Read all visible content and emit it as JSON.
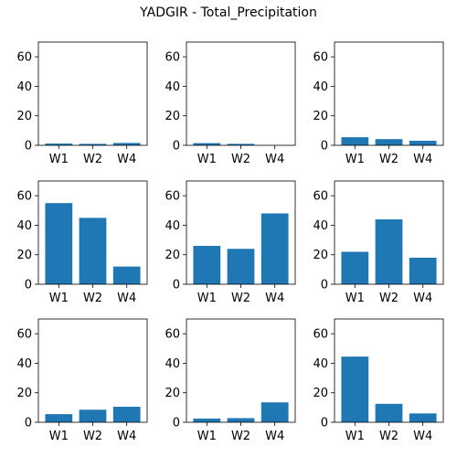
{
  "title": "YADGIR - Total_Precipitation",
  "colors": {
    "bar": "#1f77b4",
    "axis": "#000000"
  },
  "chart_data": [
    {
      "type": "bar",
      "categories": [
        "W1",
        "W2",
        "W4"
      ],
      "values": [
        1.2,
        1.0,
        1.6
      ],
      "ylim": [
        0,
        70
      ],
      "yticks": [
        0,
        20,
        40,
        60
      ],
      "grid": false
    },
    {
      "type": "bar",
      "categories": [
        "W1",
        "W2",
        "W4"
      ],
      "values": [
        1.5,
        1.0,
        0.0
      ],
      "ylim": [
        0,
        70
      ],
      "yticks": [
        0,
        20,
        40,
        60
      ],
      "grid": false
    },
    {
      "type": "bar",
      "categories": [
        "W1",
        "W2",
        "W4"
      ],
      "values": [
        5.5,
        4.2,
        3.1
      ],
      "ylim": [
        0,
        70
      ],
      "yticks": [
        0,
        20,
        40,
        60
      ],
      "grid": false
    },
    {
      "type": "bar",
      "categories": [
        "W1",
        "W2",
        "W4"
      ],
      "values": [
        55,
        45,
        12
      ],
      "ylim": [
        0,
        70
      ],
      "yticks": [
        0,
        20,
        40,
        60
      ],
      "grid": false
    },
    {
      "type": "bar",
      "categories": [
        "W1",
        "W2",
        "W4"
      ],
      "values": [
        26,
        24,
        48
      ],
      "ylim": [
        0,
        70
      ],
      "yticks": [
        0,
        20,
        40,
        60
      ],
      "grid": false
    },
    {
      "type": "bar",
      "categories": [
        "W1",
        "W2",
        "W4"
      ],
      "values": [
        22,
        44,
        18
      ],
      "ylim": [
        0,
        70
      ],
      "yticks": [
        0,
        20,
        40,
        60
      ],
      "grid": false
    },
    {
      "type": "bar",
      "categories": [
        "W1",
        "W2",
        "W4"
      ],
      "values": [
        5.5,
        8.5,
        10.5
      ],
      "ylim": [
        0,
        70
      ],
      "yticks": [
        0,
        20,
        40,
        60
      ],
      "grid": false
    },
    {
      "type": "bar",
      "categories": [
        "W1",
        "W2",
        "W4"
      ],
      "values": [
        2.5,
        2.8,
        13.5
      ],
      "ylim": [
        0,
        70
      ],
      "yticks": [
        0,
        20,
        40,
        60
      ],
      "grid": false
    },
    {
      "type": "bar",
      "categories": [
        "W1",
        "W2",
        "W4"
      ],
      "values": [
        44.5,
        12.5,
        6.0
      ],
      "ylim": [
        0,
        70
      ],
      "yticks": [
        0,
        20,
        40,
        60
      ],
      "grid": false
    }
  ]
}
